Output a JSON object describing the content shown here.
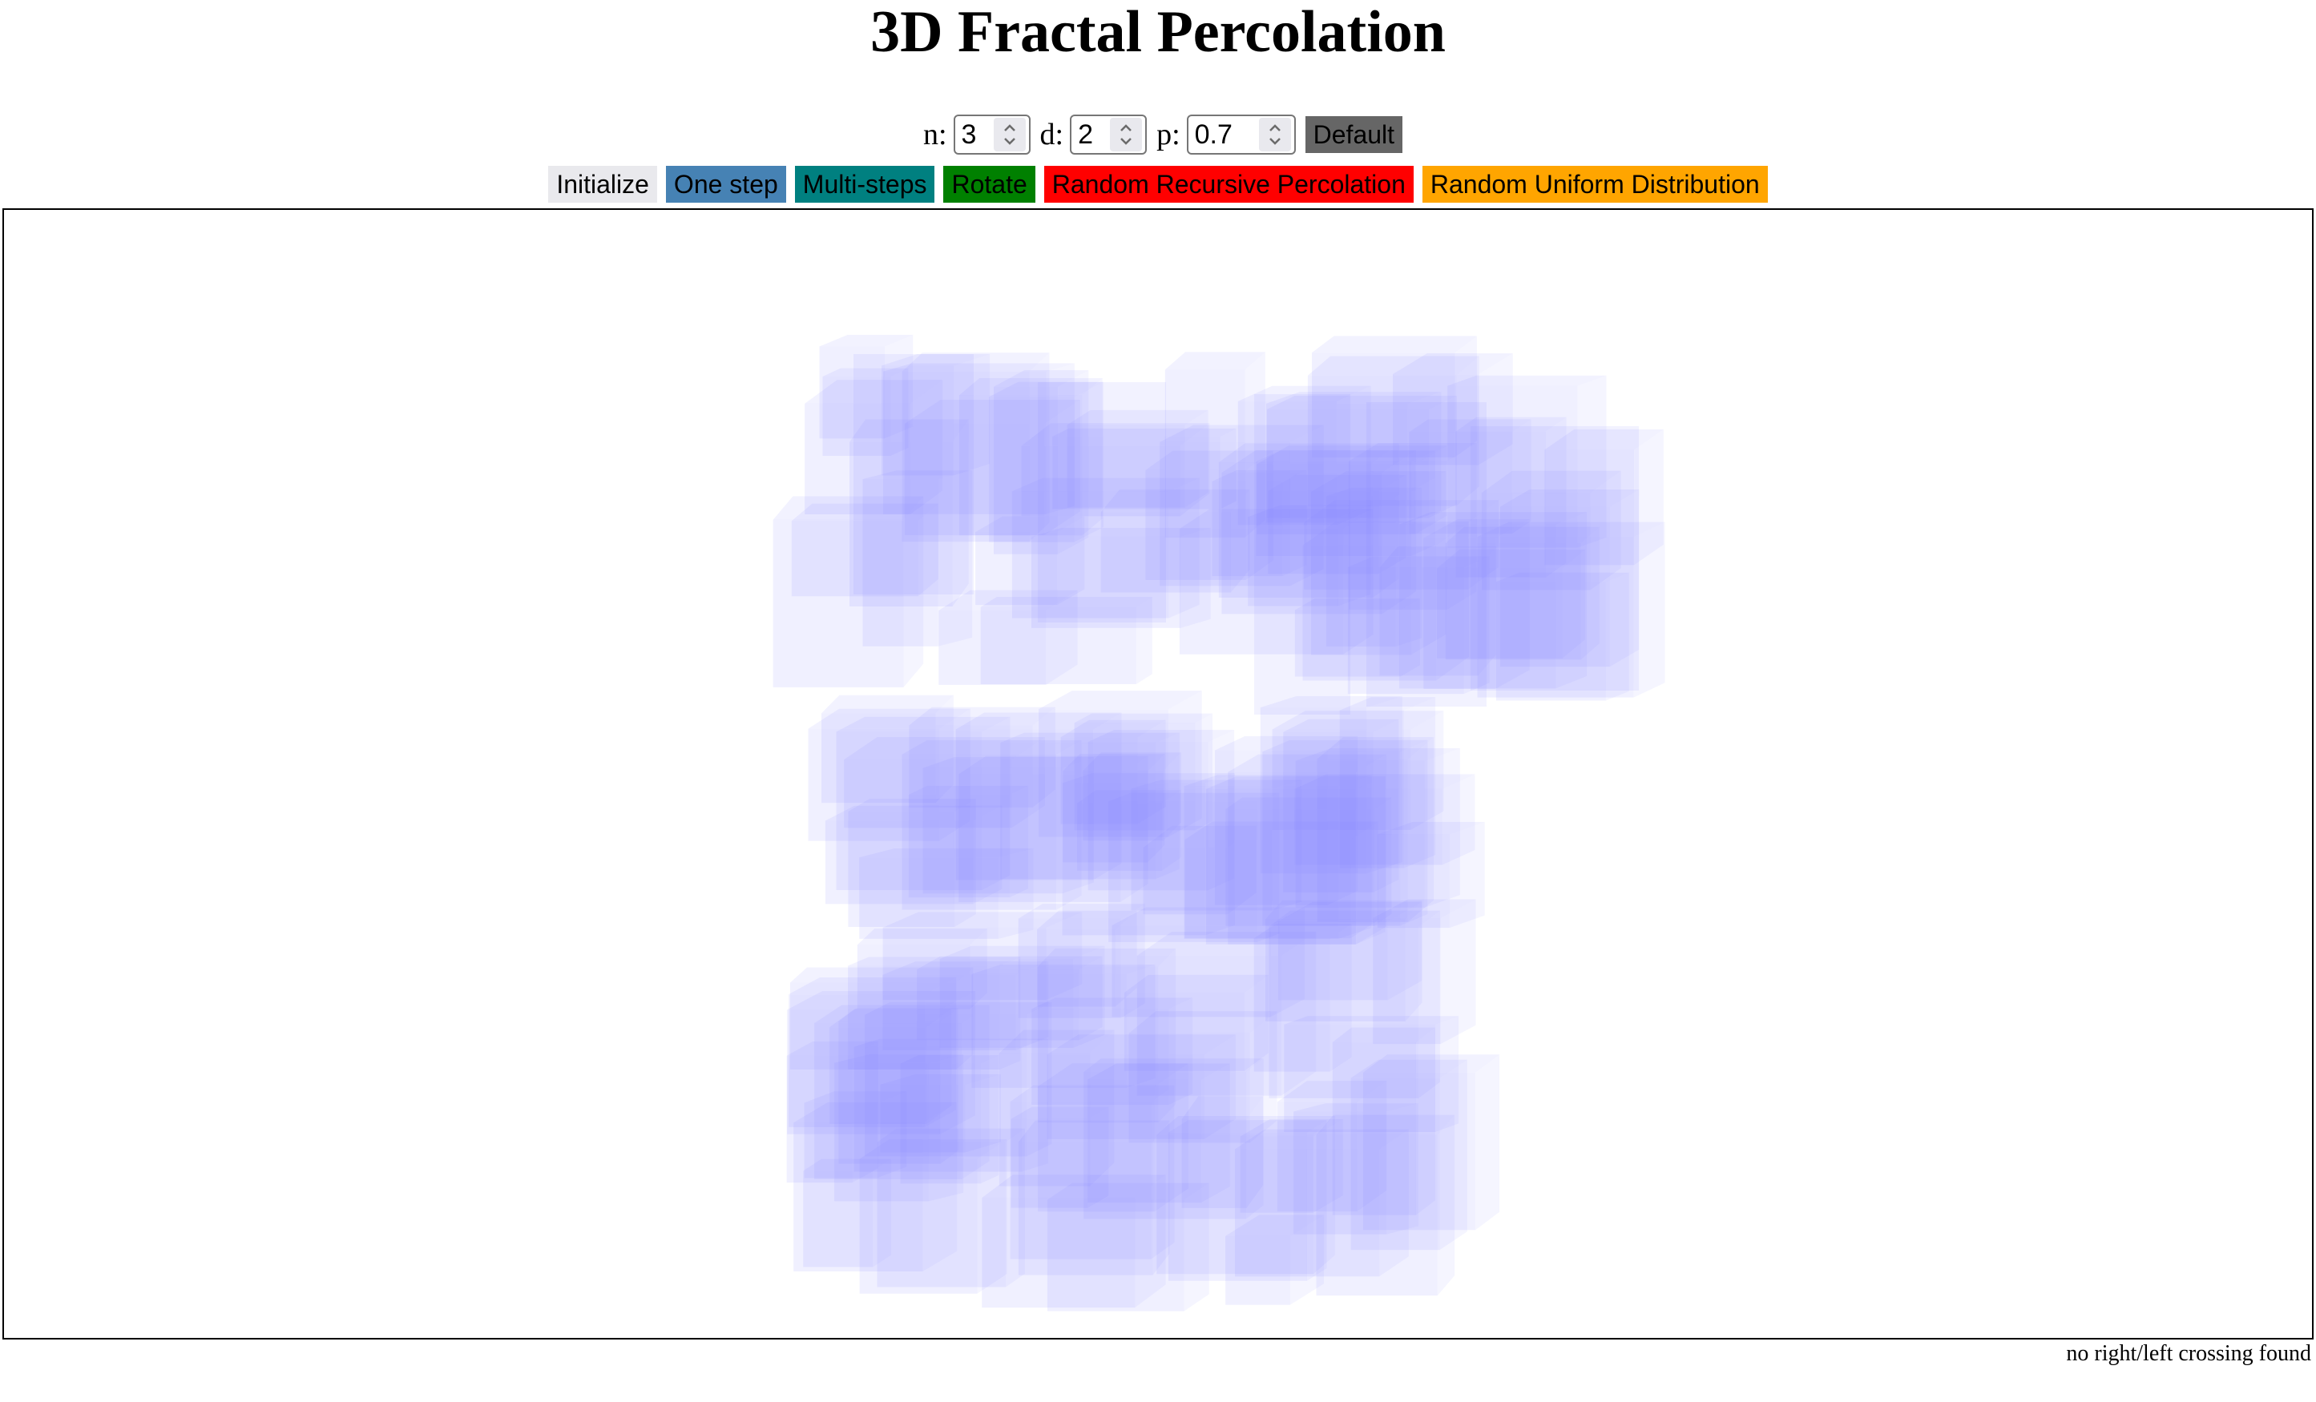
{
  "title": "3D Fractal Percolation",
  "params": {
    "n_label": "n:",
    "n_value": "3",
    "d_label": "d:",
    "d_value": "2",
    "p_label": "p:",
    "p_value": "0.7",
    "default_label": "Default"
  },
  "buttons": {
    "initialize": "Initialize",
    "one_step": "One step",
    "multi_steps": "Multi-steps",
    "rotate": "Rotate",
    "random_recursive": "Random Recursive Percolation",
    "random_uniform": "Random Uniform Distribution"
  },
  "colors": {
    "cube_fill": "#8080ff",
    "initialize": "#e9e9ed",
    "one_step": "#4682b4",
    "multi_steps": "#008080",
    "rotate": "#008000",
    "random_recursive": "#ff0000",
    "random_uniform": "#ffa500",
    "default": "#666666"
  },
  "status": "no right/left crossing found"
}
